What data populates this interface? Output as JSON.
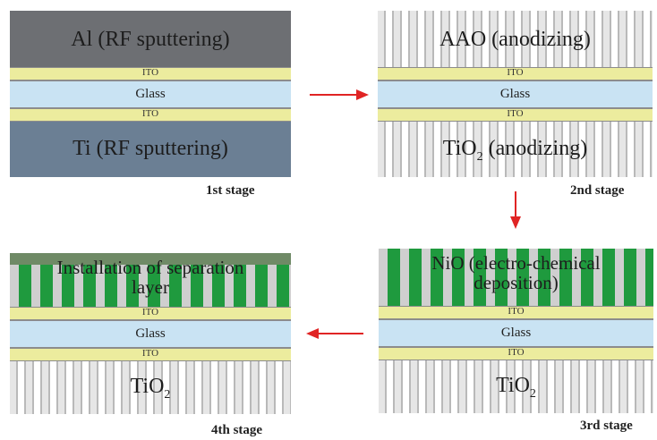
{
  "panels": {
    "stage1": {
      "top_label": "Al (RF sputtering)",
      "ito_top": "ITO",
      "glass": "Glass",
      "ito_bottom": "ITO",
      "bottom_label": "Ti (RF sputtering)",
      "stage_label": "1st stage"
    },
    "stage2": {
      "top_label": "AAO (anodizing)",
      "ito_top": "ITO",
      "glass": "Glass",
      "ito_bottom": "ITO",
      "bottom_label_main": "TiO",
      "bottom_label_sub": "2",
      "bottom_label_rest": " (anodizing)",
      "stage_label": "2nd stage"
    },
    "stage3": {
      "top_label_line1": "NiO (electro-chemical",
      "top_label_line2": "deposition)",
      "ito_top": "ITO",
      "glass": "Glass",
      "ito_bottom": "ITO",
      "bottom_label_main": "TiO",
      "bottom_label_sub": "2",
      "stage_label": "3rd stage"
    },
    "stage4": {
      "top_label_line1": "Installation of separation",
      "top_label_line2": "layer",
      "ito_top": "ITO",
      "glass": "Glass",
      "ito_bottom": "ITO",
      "bottom_label_main": "TiO",
      "bottom_label_sub": "2",
      "stage_label": "4th stage"
    }
  },
  "colors": {
    "arrow": "#e02424",
    "ito": "#ecec9e",
    "glass": "#c9e3f3",
    "nio": "#1f9a3e"
  }
}
